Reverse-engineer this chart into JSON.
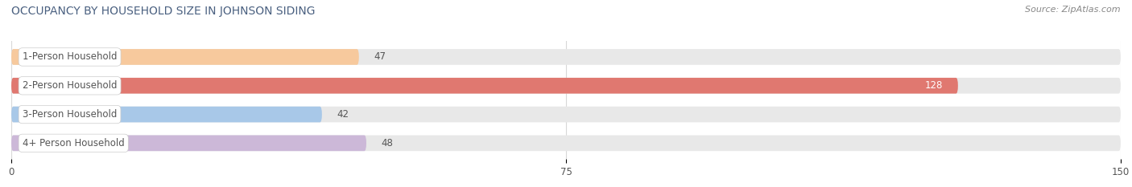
{
  "title": "OCCUPANCY BY HOUSEHOLD SIZE IN JOHNSON SIDING",
  "source": "Source: ZipAtlas.com",
  "categories": [
    "1-Person Household",
    "2-Person Household",
    "3-Person Household",
    "4+ Person Household"
  ],
  "values": [
    47,
    128,
    42,
    48
  ],
  "bar_colors": [
    "#f7c99d",
    "#e07870",
    "#a8c8e8",
    "#ccb8d8"
  ],
  "xlim": [
    0,
    150
  ],
  "xticks": [
    0,
    75,
    150
  ],
  "background_color": "#ffffff",
  "bar_bg_color": "#e8e8e8",
  "grid_color": "#d8d8d8",
  "title_color": "#4a6080",
  "label_color": "#555555",
  "source_color": "#888888",
  "value_color_outside": "#555555",
  "value_color_inside": "#ffffff",
  "title_fontsize": 10,
  "label_fontsize": 8.5,
  "value_fontsize": 8.5,
  "source_fontsize": 8
}
